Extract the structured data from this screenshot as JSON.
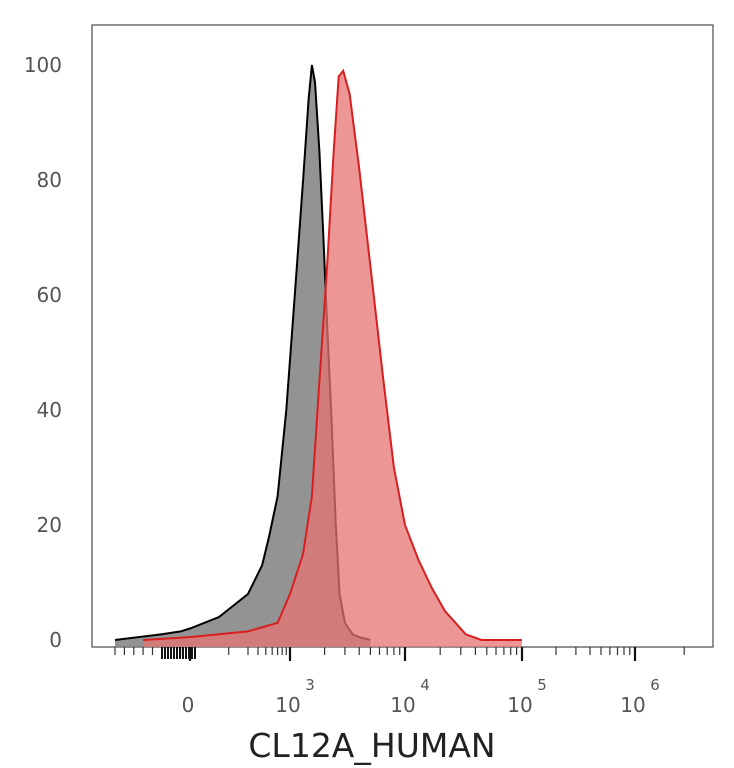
{
  "chart_data": {
    "type": "area",
    "title": "",
    "xlabel": "CL12A_HUMAN",
    "ylabel": "",
    "x_scale": "biexponential",
    "ylim": [
      0,
      100
    ],
    "y_ticks": [
      0,
      20,
      40,
      60,
      80,
      100
    ],
    "x_ticks": [
      {
        "value": 0,
        "base": "0",
        "exp": ""
      },
      {
        "value": 1000,
        "base": "10",
        "exp": "3"
      },
      {
        "value": 10000,
        "base": "10",
        "exp": "4"
      },
      {
        "value": 100000,
        "base": "10",
        "exp": "5"
      },
      {
        "value": 1000000,
        "base": "10",
        "exp": "6"
      }
    ],
    "grid": false,
    "series": [
      {
        "fill": "#808080",
        "stroke": "#000000",
        "points": [
          [
            -800,
            0
          ],
          [
            -300,
            1
          ],
          [
            -100,
            1.5
          ],
          [
            0,
            2
          ],
          [
            150,
            4
          ],
          [
            300,
            8
          ],
          [
            450,
            13
          ],
          [
            550,
            18
          ],
          [
            700,
            25
          ],
          [
            900,
            40
          ],
          [
            1100,
            60
          ],
          [
            1300,
            80
          ],
          [
            1450,
            94
          ],
          [
            1550,
            100
          ],
          [
            1650,
            97
          ],
          [
            1800,
            85
          ],
          [
            1950,
            70
          ],
          [
            2100,
            55
          ],
          [
            2300,
            38
          ],
          [
            2500,
            20
          ],
          [
            2700,
            8
          ],
          [
            3000,
            3
          ],
          [
            3500,
            1
          ],
          [
            4000,
            0.5
          ],
          [
            5000,
            0
          ]
        ]
      },
      {
        "fill": "#e57373",
        "stroke": "#d81e1e",
        "points": [
          [
            -500,
            0
          ],
          [
            0,
            0.5
          ],
          [
            300,
            1.5
          ],
          [
            700,
            3
          ],
          [
            1000,
            8
          ],
          [
            1300,
            15
          ],
          [
            1550,
            25
          ],
          [
            1800,
            45
          ],
          [
            2100,
            65
          ],
          [
            2400,
            85
          ],
          [
            2650,
            98
          ],
          [
            2900,
            99
          ],
          [
            3300,
            95
          ],
          [
            4000,
            82
          ],
          [
            5000,
            65
          ],
          [
            6500,
            45
          ],
          [
            8000,
            30
          ],
          [
            10000,
            20
          ],
          [
            13000,
            14
          ],
          [
            17000,
            9
          ],
          [
            22000,
            5
          ],
          [
            27000,
            3
          ],
          [
            33000,
            1
          ],
          [
            45000,
            0
          ],
          [
            100000,
            0
          ]
        ]
      }
    ]
  }
}
